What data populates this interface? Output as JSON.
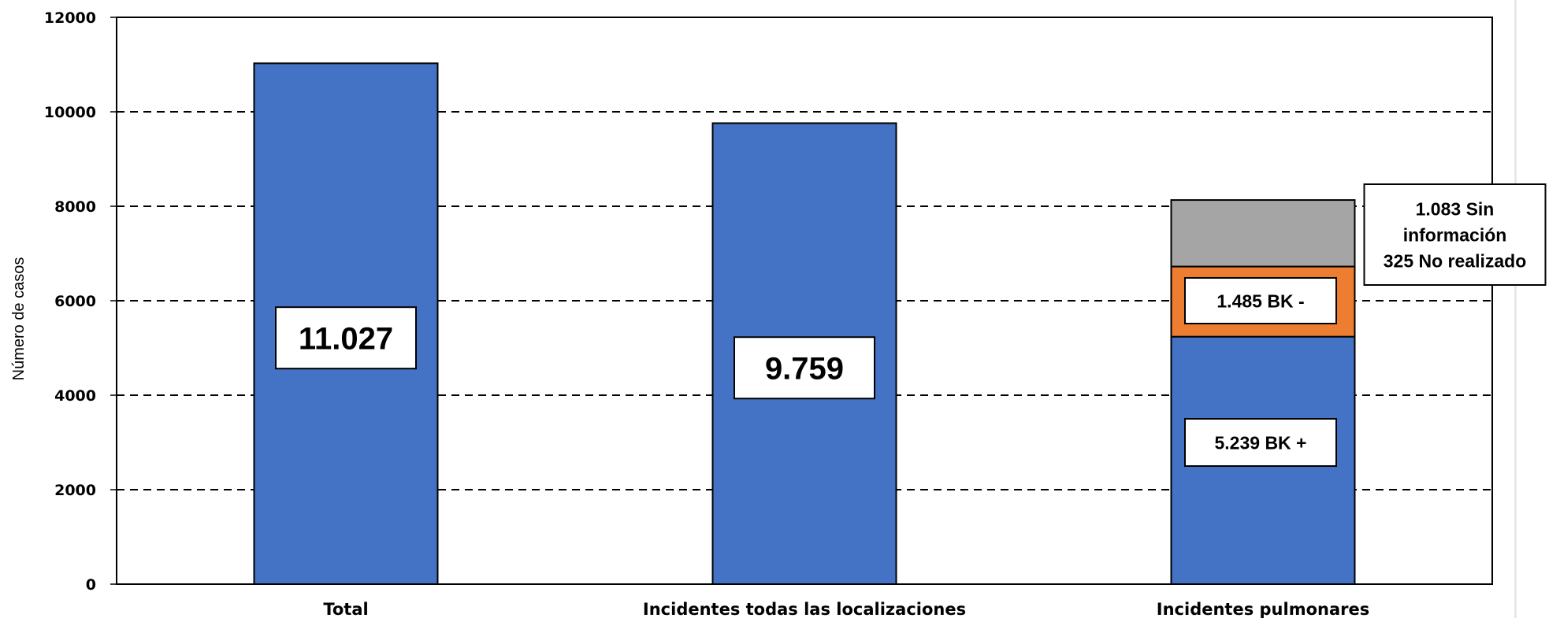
{
  "chart_data": {
    "type": "bar",
    "stacked": true,
    "ylabel": "Número de casos",
    "xlabel": "",
    "ylim": [
      0,
      12000
    ],
    "yticks": [
      0,
      2000,
      4000,
      6000,
      8000,
      10000,
      12000
    ],
    "grid": "dashed horizontal",
    "categories": [
      "Total",
      "Incidentes todas las localizaciones",
      "Incidentes pulmonares"
    ],
    "series": [
      {
        "values": [
          11027,
          9759,
          5239
        ],
        "color": "#4472C4"
      },
      {
        "values": [
          0,
          0,
          1485
        ],
        "color": "#ED7D31"
      },
      {
        "values": [
          0,
          0,
          1408
        ],
        "color": "#A5A5A5"
      }
    ],
    "value_labels": [
      {
        "category": 0,
        "lines": [
          "11.027"
        ],
        "size": "large"
      },
      {
        "category": 1,
        "lines": [
          "9.759"
        ],
        "size": "large"
      },
      {
        "category": 2,
        "lines": [
          "5.239 BK +"
        ],
        "size": "small",
        "anchor_value": 3000
      },
      {
        "category": 2,
        "lines": [
          "1.485 BK -"
        ],
        "size": "small",
        "anchor_value": 6000
      },
      {
        "category": 2,
        "lines": [
          "1.083 Sin",
          "información",
          "325 No realizado"
        ],
        "size": "small",
        "anchor_value": 7400,
        "outside": true
      }
    ]
  }
}
